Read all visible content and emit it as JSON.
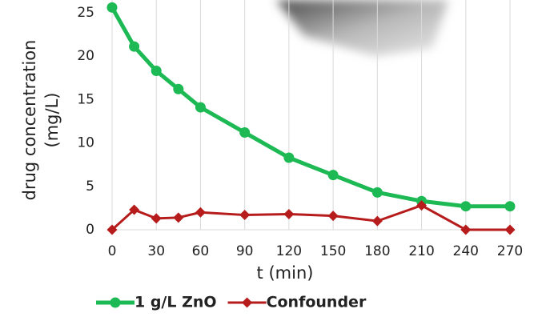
{
  "chart_data": {
    "type": "line",
    "x": [
      0,
      15,
      30,
      45,
      60,
      90,
      120,
      150,
      180,
      210,
      240,
      270
    ],
    "series": [
      {
        "name": "1 g/L ZnO",
        "color": "#1db954",
        "marker": "circle",
        "values": [
          25.6,
          21.1,
          18.3,
          16.2,
          14.1,
          11.2,
          8.3,
          6.3,
          4.3,
          3.3,
          2.7,
          2.7
        ]
      },
      {
        "name": "Confounder",
        "color": "#b71c1c",
        "marker": "diamond",
        "values": [
          0,
          2.3,
          1.3,
          1.4,
          2.0,
          1.7,
          1.8,
          1.6,
          1.0,
          2.8,
          0,
          0
        ]
      }
    ],
    "x_label": "t (min)",
    "y_label": [
      "drug concentration",
      "(mg/L)"
    ],
    "xlim": [
      0,
      270
    ],
    "xticks": [
      0,
      30,
      60,
      90,
      120,
      150,
      180,
      210,
      240,
      270
    ],
    "ylim": [
      0,
      26
    ],
    "yticks": [
      0,
      5,
      10,
      15,
      20,
      25
    ],
    "grid": "x",
    "legend": "bottom"
  }
}
